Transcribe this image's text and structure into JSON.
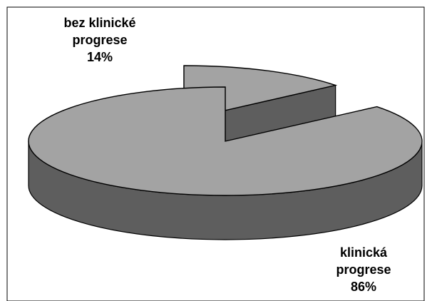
{
  "chart_data": {
    "type": "pie",
    "style": "3d-exploded",
    "slices": [
      {
        "label_lines": [
          "bez klinické",
          "progrese"
        ],
        "value_label": "14%",
        "value": 14,
        "color": "#a3a3a3"
      },
      {
        "label_lines": [
          "klinická",
          "progrese"
        ],
        "value_label": "86%",
        "value": 86,
        "color": "#a3a3a3"
      }
    ],
    "side_color": "#5e5e5e",
    "outline_color": "#000000",
    "title": "",
    "legend": "none"
  }
}
